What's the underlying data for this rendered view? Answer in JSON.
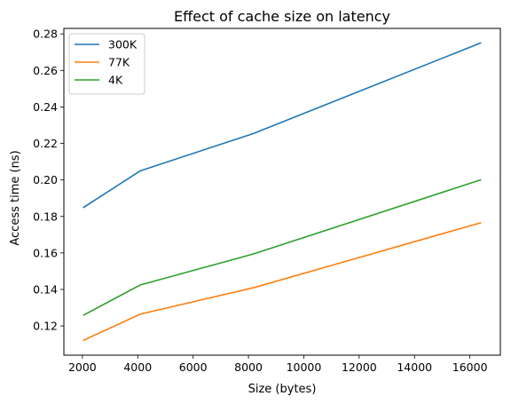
{
  "chart_data": {
    "type": "line",
    "title": "Effect of cache size on latency",
    "xlabel": "Size (bytes)",
    "ylabel": "Access time (ns)",
    "x": [
      2048,
      4096,
      8192,
      16384
    ],
    "xlim": [
      1331,
      17101
    ],
    "ylim": [
      0.104,
      0.283
    ],
    "xticks": [
      2000,
      4000,
      6000,
      8000,
      10000,
      12000,
      14000,
      16000
    ],
    "yticks": [
      0.12,
      0.14,
      0.16,
      0.18,
      0.2,
      0.22,
      0.24,
      0.26,
      0.28
    ],
    "xtick_labels": [
      "2000",
      "4000",
      "6000",
      "8000",
      "10000",
      "12000",
      "14000",
      "16000"
    ],
    "ytick_labels": [
      "0.12",
      "0.14",
      "0.16",
      "0.18",
      "0.20",
      "0.22",
      "0.24",
      "0.26",
      "0.28"
    ],
    "grid": false,
    "legend": "upper-left",
    "series": [
      {
        "name": "300K",
        "color": "#1f77b4",
        "values": [
          0.185,
          0.205,
          0.2255,
          0.275
        ]
      },
      {
        "name": "77K",
        "color": "#ff7f0e",
        "values": [
          0.1122,
          0.1265,
          0.141,
          0.1765
        ]
      },
      {
        "name": "4K",
        "color": "#2ca02c",
        "values": [
          0.126,
          0.1425,
          0.1595,
          0.2
        ]
      }
    ]
  }
}
